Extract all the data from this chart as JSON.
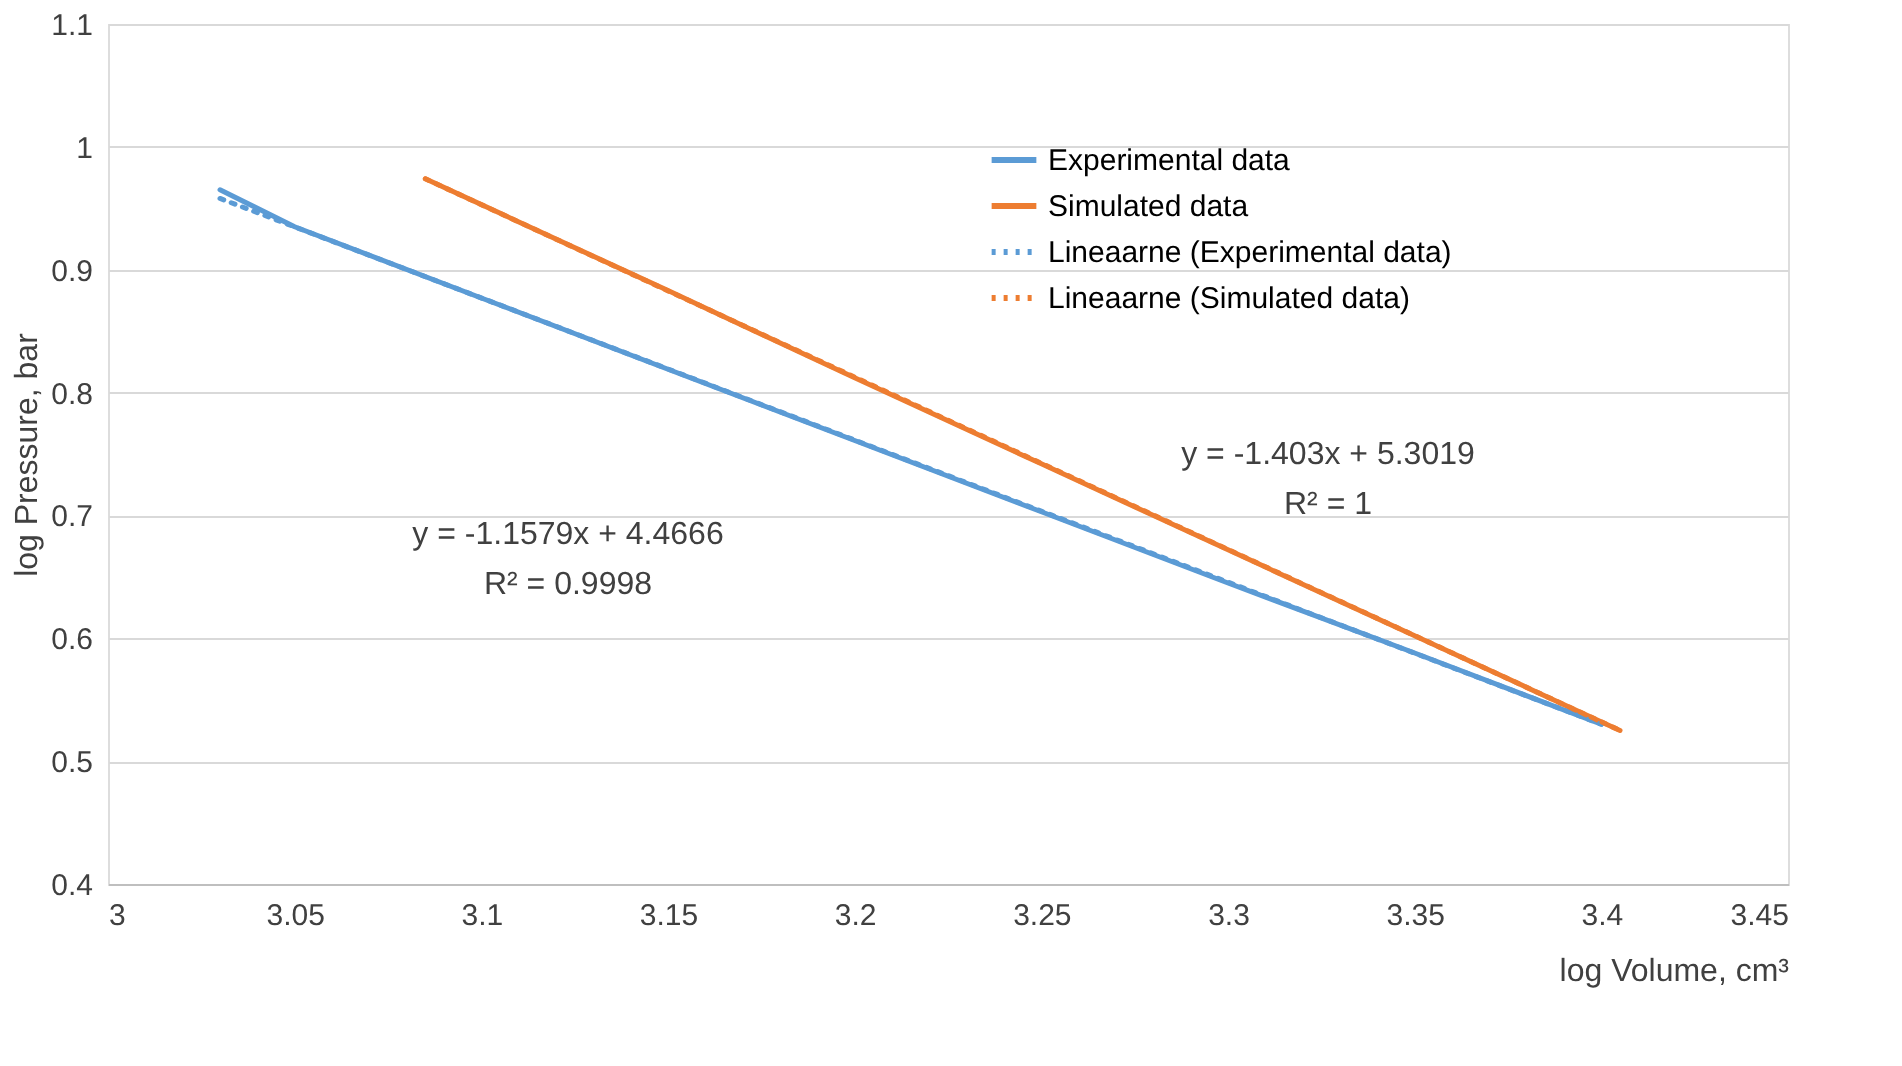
{
  "chart_data": {
    "type": "line",
    "xlabel": "log Volume, cm³",
    "ylabel": "log Pressure, bar",
    "xlim": [
      3,
      3.45
    ],
    "xticks": [
      3,
      3.05,
      3.1,
      3.15,
      3.2,
      3.25,
      3.3,
      3.35,
      3.4,
      3.45
    ],
    "ylim": [
      0.4,
      1.1
    ],
    "yticks": [
      0.4,
      0.5,
      0.6,
      0.7,
      0.8,
      0.9,
      1,
      1.1
    ],
    "grid": "y",
    "legend": "top right",
    "marker": "none",
    "series": [
      {
        "name": "Experimental data",
        "color": "#5b9bd5",
        "line_style": "solid",
        "x": [
          3.03,
          3.05,
          3.1,
          3.15,
          3.2,
          3.25,
          3.3,
          3.35,
          3.4
        ],
        "values": [
          0.965,
          0.935,
          0.877,
          0.819,
          0.761,
          0.703,
          0.645,
          0.588,
          0.53
        ]
      },
      {
        "name": "Simulated data",
        "color": "#ed7d31",
        "line_style": "solid",
        "x": [
          3.085,
          3.15,
          3.2,
          3.25,
          3.3,
          3.35,
          3.405
        ],
        "values": [
          0.974,
          0.883,
          0.812,
          0.742,
          0.672,
          0.602,
          0.525
        ]
      },
      {
        "name": "Lineaarne (Experimental data)",
        "color": "#5b9bd5",
        "line_style": "dotted",
        "x": [
          3.03,
          3.4
        ],
        "values": [
          0.958,
          0.53
        ]
      },
      {
        "name": "Lineaarne (Simulated data)",
        "color": "#ed7d31",
        "line_style": "dotted",
        "x": [
          3.085,
          3.405
        ],
        "values": [
          0.974,
          0.525
        ]
      }
    ],
    "annotations": [
      "y = -1.1579x + 4.4666",
      "R² = 0.9998",
      "y = -1.403x + 5.3019",
      "R² = 1"
    ]
  }
}
